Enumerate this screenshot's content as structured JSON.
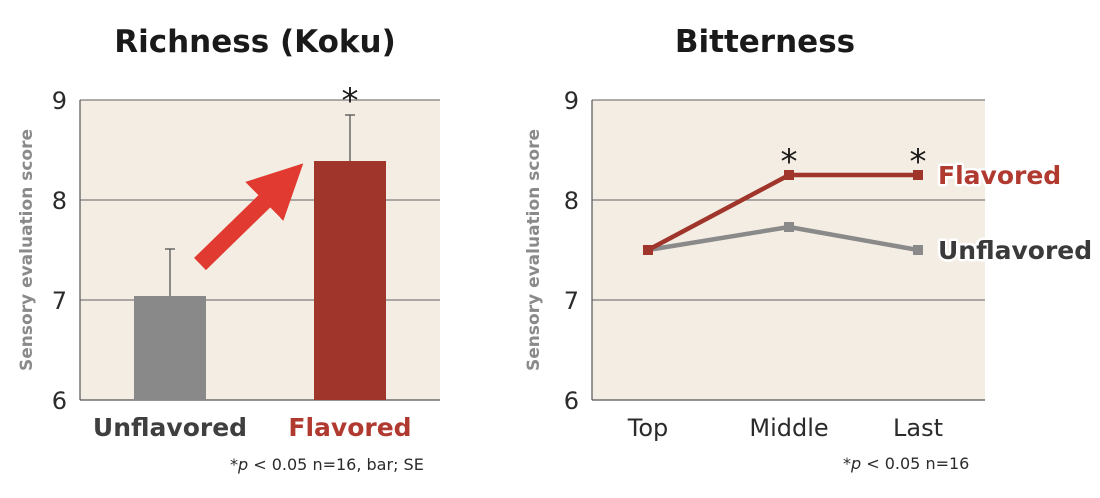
{
  "chart_data": [
    {
      "type": "bar",
      "title": "Richness (Koku)",
      "ylabel": "Sensory evaluation score",
      "ylim": [
        6,
        9
      ],
      "yticks": [
        6,
        7,
        8,
        9
      ],
      "categories": [
        "Unflavored",
        "Flavored"
      ],
      "values": [
        7.04,
        8.39
      ],
      "errors": [
        0.47,
        0.46
      ],
      "colors": [
        "#898989",
        "#a0352b"
      ],
      "label_colors": [
        "#3f3f3f",
        "#b13a30"
      ],
      "annotations": [
        {
          "category": "Flavored",
          "text": "*"
        }
      ],
      "note": {
        "star": "*",
        "p": "p",
        "rest": " < 0.05   n=16, bar; SE"
      },
      "plot_background": "#f3ede3",
      "arrow_color": "#e03a31",
      "grid": "horizontal"
    },
    {
      "type": "line",
      "title": "Bitterness",
      "ylabel": "Sensory evaluation score",
      "ylim": [
        6,
        9
      ],
      "yticks": [
        6,
        7,
        8,
        9
      ],
      "categories": [
        "Top",
        "Middle",
        "Last"
      ],
      "series": [
        {
          "name": "Unflavored",
          "values": [
            7.5,
            7.73,
            7.5
          ],
          "color": "#8a8a8a",
          "label_color": "#3a3a3a"
        },
        {
          "name": "Flavored",
          "values": [
            7.5,
            8.25,
            8.25
          ],
          "color": "#a0352b",
          "label_color": "#b13a30"
        }
      ],
      "annotations": [
        {
          "category": "Middle",
          "text": "*"
        },
        {
          "category": "Last",
          "text": "*"
        }
      ],
      "note": {
        "star": "*",
        "p": "p",
        "rest": " < 0.05  n=16"
      },
      "plot_background": "#f3ede3",
      "grid": "horizontal"
    }
  ]
}
